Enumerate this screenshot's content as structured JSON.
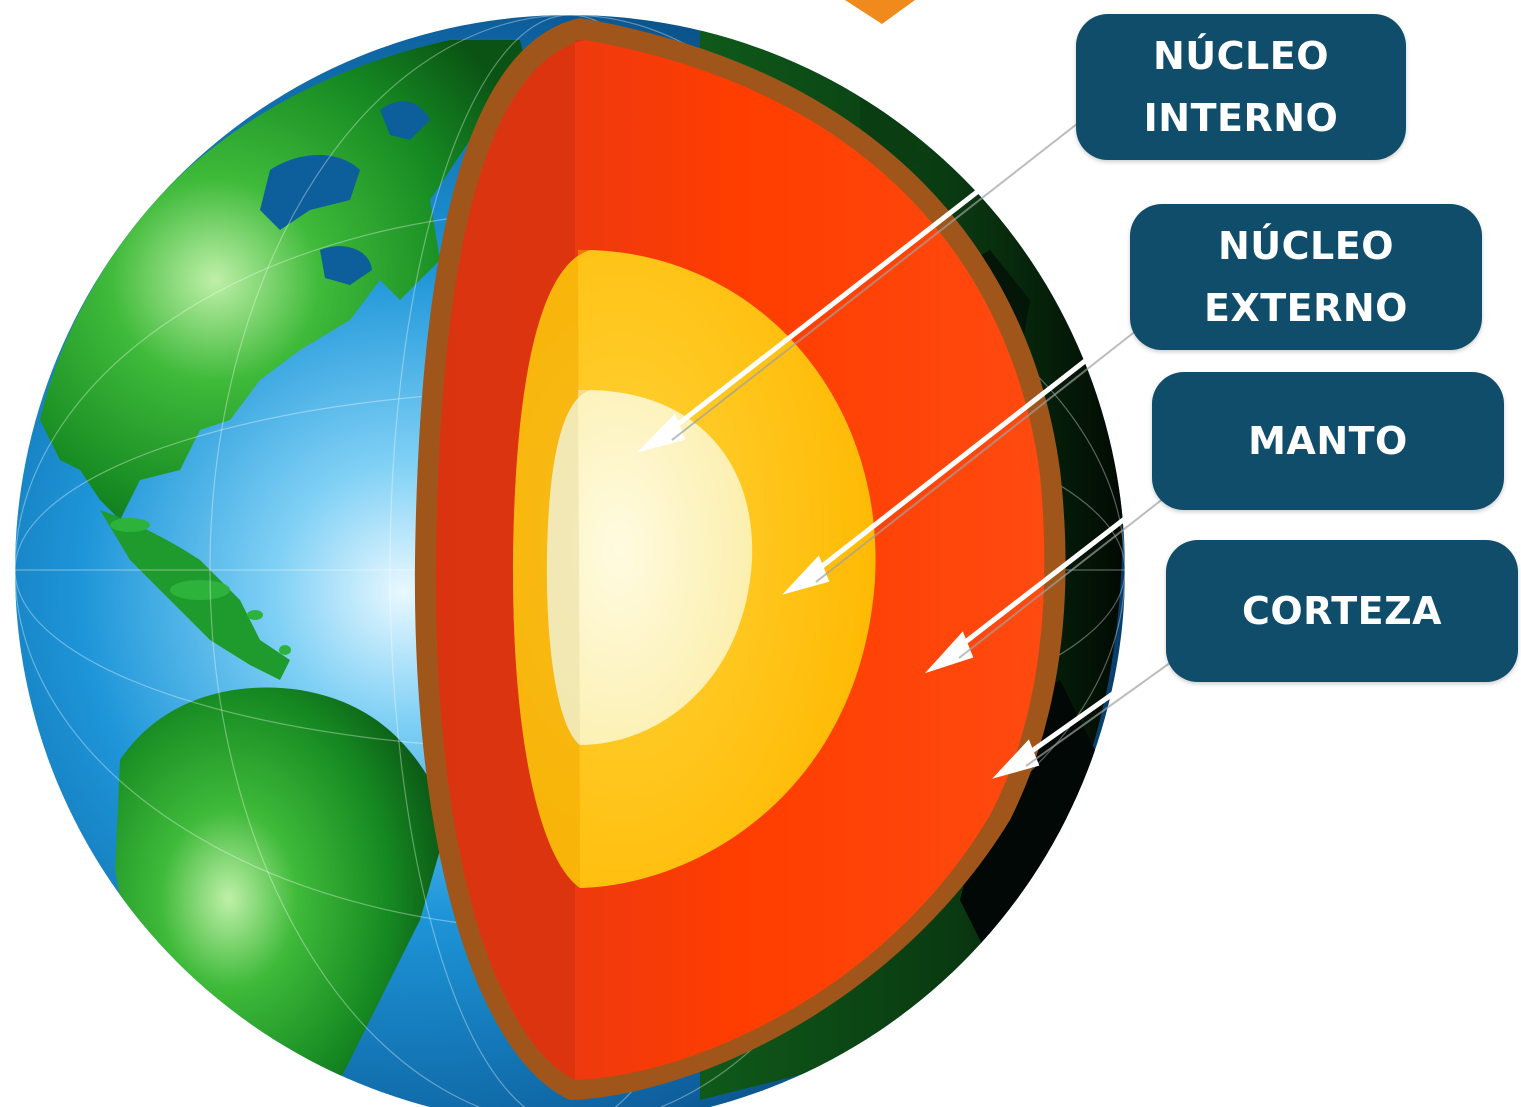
{
  "diagram": {
    "labels": [
      {
        "id": "inner_core",
        "lines": [
          "NÚCLEO",
          "INTERNO"
        ]
      },
      {
        "id": "outer_core",
        "lines": [
          "NÚCLEO",
          "EXTERNO"
        ]
      },
      {
        "id": "mantle",
        "lines": [
          "MANTO"
        ]
      },
      {
        "id": "crust",
        "lines": [
          "CORTEZA"
        ]
      }
    ]
  },
  "colors": {
    "label_background": "#0f4d6b",
    "label_text": "#ffffff",
    "crust_rim": "#a0561a",
    "mantle": "#ff3d00",
    "mantle_shadow": "#cc2e00",
    "outer_core": "#ffc300",
    "inner_core": "#fff3b8",
    "ocean": "#1a8fd6",
    "land": "#1f8f2a",
    "night_side": "#061a0a",
    "accent_arrow": "#f08a1c"
  }
}
